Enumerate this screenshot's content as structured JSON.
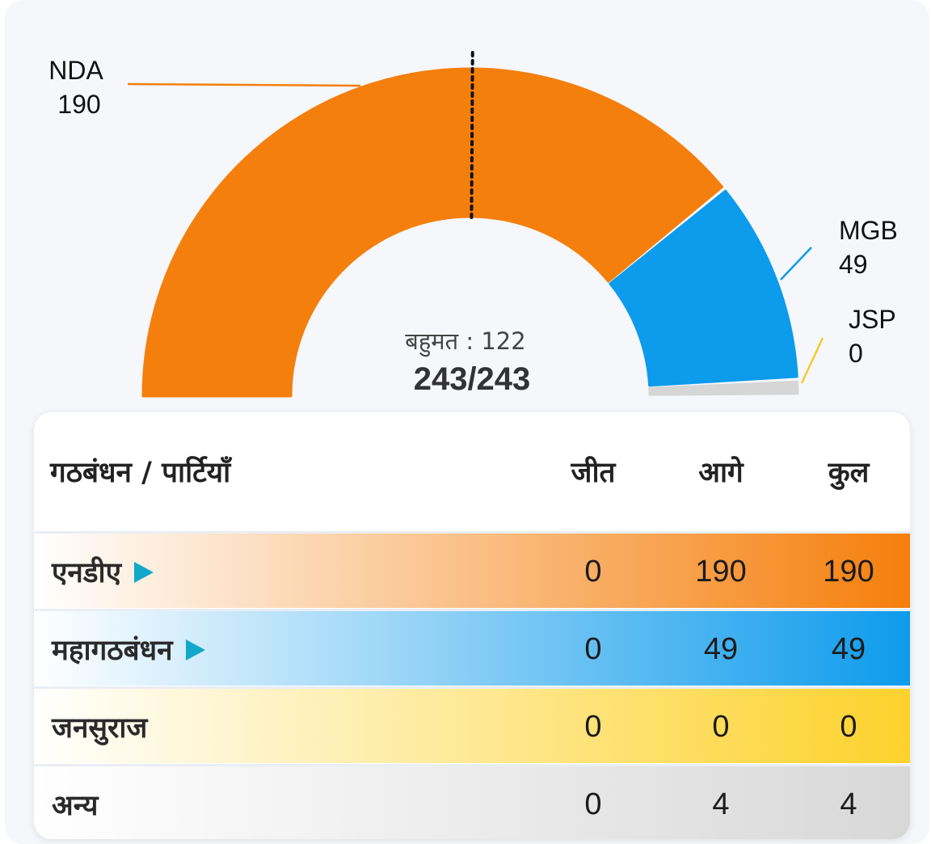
{
  "chart_data": {
    "type": "pie",
    "subtype": "semi-donut",
    "categories": [
      "NDA",
      "MGB",
      "JSP",
      "अन्य"
    ],
    "values": [
      190,
      49,
      0,
      4
    ],
    "colors": [
      "#f57f0c",
      "#0d9bec",
      "#f6c92a",
      "#d6d6d6"
    ],
    "outside_labels": [
      {
        "name": "NDA",
        "value": "190"
      },
      {
        "name": "MGB",
        "value": "49"
      },
      {
        "name": "JSP",
        "value": "0"
      }
    ],
    "majority_label": "बहुमत : 122",
    "total_label": "243/243",
    "majority_value": 122,
    "total_seats": 243
  },
  "table": {
    "header": {
      "label": "गठबंधन / पार्टियाँ",
      "won": "जीत",
      "leading": "आगे",
      "total": "कुल"
    },
    "rows": [
      {
        "name": "एनडीए",
        "won": "0",
        "leading": "190",
        "total": "190",
        "color": "#f57f0c",
        "has_arrow": true
      },
      {
        "name": "महागठबंधन",
        "won": "0",
        "leading": "49",
        "total": "49",
        "color": "#0d9bec",
        "has_arrow": true
      },
      {
        "name": "जनसुराज",
        "won": "0",
        "leading": "0",
        "total": "0",
        "color": "#fdd22b",
        "has_arrow": false
      },
      {
        "name": "अन्य",
        "won": "0",
        "leading": "4",
        "total": "4",
        "color": "#d8d8d8",
        "has_arrow": false
      }
    ]
  }
}
